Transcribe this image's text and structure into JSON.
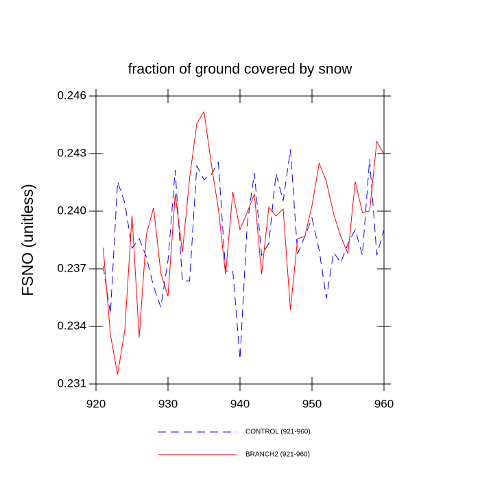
{
  "chart_data": {
    "type": "line",
    "title": "fraction of ground covered by snow",
    "y_label": "FSNO  (unitless)",
    "x": [
      921,
      922,
      923,
      924,
      925,
      926,
      927,
      928,
      929,
      930,
      931,
      932,
      933,
      934,
      935,
      936,
      937,
      938,
      939,
      940,
      941,
      942,
      943,
      944,
      945,
      946,
      947,
      948,
      949,
      950,
      951,
      952,
      953,
      954,
      955,
      956,
      957,
      958,
      959,
      960
    ],
    "series": [
      {
        "name": "CONTROL (921-960)",
        "color": "#0000ff",
        "line_style": "dashed",
        "values": [
          0.23714,
          0.23464,
          0.24154,
          0.24043,
          0.23807,
          0.23857,
          0.23761,
          0.23607,
          0.235,
          0.23743,
          0.24214,
          0.23636,
          0.23636,
          0.24236,
          0.24164,
          0.2419,
          0.24254,
          0.23689,
          0.23689,
          0.23229,
          0.23932,
          0.242,
          0.23771,
          0.23832,
          0.24196,
          0.24054,
          0.24321,
          0.23779,
          0.23868,
          0.23964,
          0.23796,
          0.23546,
          0.23786,
          0.23732,
          0.23832,
          0.23904,
          0.23771,
          0.24271,
          0.23771,
          0.23904
        ]
      },
      {
        "name": "BRANCH2 (921-960)",
        "color": "#ff0000",
        "line_style": "solid",
        "values": [
          0.2381,
          0.23357,
          0.2315,
          0.23379,
          0.23979,
          0.23343,
          0.23879,
          0.24018,
          0.23679,
          0.23557,
          0.2409,
          0.23786,
          0.24171,
          0.24457,
          0.24518,
          0.2425,
          0.24011,
          0.23671,
          0.241,
          0.23904,
          0.23993,
          0.2409,
          0.23671,
          0.24021,
          0.23975,
          0.24011,
          0.23486,
          0.23857,
          0.23868,
          0.24029,
          0.2425,
          0.24154,
          0.23986,
          0.23868,
          0.23779,
          0.24154,
          0.23993,
          0.24,
          0.24364,
          0.24296
        ]
      }
    ],
    "xlim": [
      920,
      960
    ],
    "xticks": [
      920,
      930,
      940,
      950,
      960
    ],
    "ylim": [
      0.231,
      0.246
    ],
    "yticks": [
      0.231,
      0.234,
      0.237,
      {
        "value": 0.24,
        "label": "0.240"
      },
      0.243,
      0.246
    ],
    "grid": false,
    "legend": "bottom"
  }
}
